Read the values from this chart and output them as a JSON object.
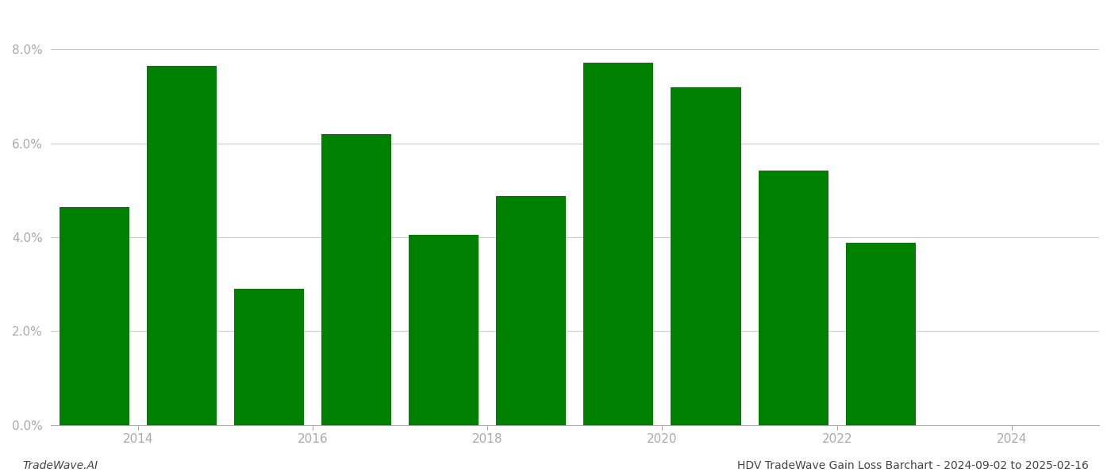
{
  "bar_positions": [
    2013.5,
    2014.5,
    2015.5,
    2016.5,
    2017.5,
    2018.5,
    2019.5,
    2020.5,
    2021.5,
    2022.5
  ],
  "values": [
    0.0465,
    0.0765,
    0.029,
    0.062,
    0.0405,
    0.0488,
    0.0772,
    0.072,
    0.0542,
    0.0388
  ],
  "bar_color": "#008000",
  "background_color": "#ffffff",
  "ylim": [
    0,
    0.088
  ],
  "yticks": [
    0.0,
    0.02,
    0.04,
    0.06,
    0.08
  ],
  "ytick_labels": [
    "0.0%",
    "2.0%",
    "4.0%",
    "6.0%",
    "8.0%"
  ],
  "xlim": [
    2013.0,
    2025.0
  ],
  "xticks": [
    2014,
    2016,
    2018,
    2020,
    2022,
    2024
  ],
  "grid_color": "#cccccc",
  "footer_left": "TradeWave.AI",
  "footer_right": "HDV TradeWave Gain Loss Barchart - 2024-09-02 to 2025-02-16",
  "footer_fontsize": 10,
  "tick_fontsize": 11,
  "tick_color": "#aaaaaa",
  "bar_width": 0.8
}
